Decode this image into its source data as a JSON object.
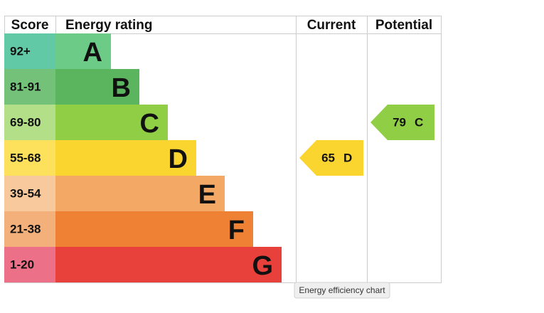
{
  "header": [
    "Score",
    "Energy rating",
    "Current",
    "Potential"
  ],
  "rows": [
    {
      "score": "92+",
      "rating": "A",
      "score_color": "#62c9a6",
      "bar_color": "#6bcb87"
    },
    {
      "score": "81-91",
      "rating": "B",
      "score_color": "#74c27a",
      "bar_color": "#5bb55f"
    },
    {
      "score": "69-80",
      "rating": "C",
      "score_color": "#b3df88",
      "bar_color": "#8fce45"
    },
    {
      "score": "55-68",
      "rating": "D",
      "score_color": "#fde05c",
      "bar_color": "#fbd52f"
    },
    {
      "score": "39-54",
      "rating": "E",
      "score_color": "#f7c99d",
      "bar_color": "#f3a866"
    },
    {
      "score": "21-38",
      "rating": "F",
      "score_color": "#f3b07a",
      "bar_color": "#ee8133"
    },
    {
      "score": "1-20",
      "rating": "G",
      "score_color": "#ec7088",
      "bar_color": "#e8403b"
    }
  ],
  "current": {
    "value": 65,
    "rating": "D"
  },
  "potential": {
    "value": 79,
    "rating": "C"
  },
  "tooltip": "Energy efficiency chart"
}
